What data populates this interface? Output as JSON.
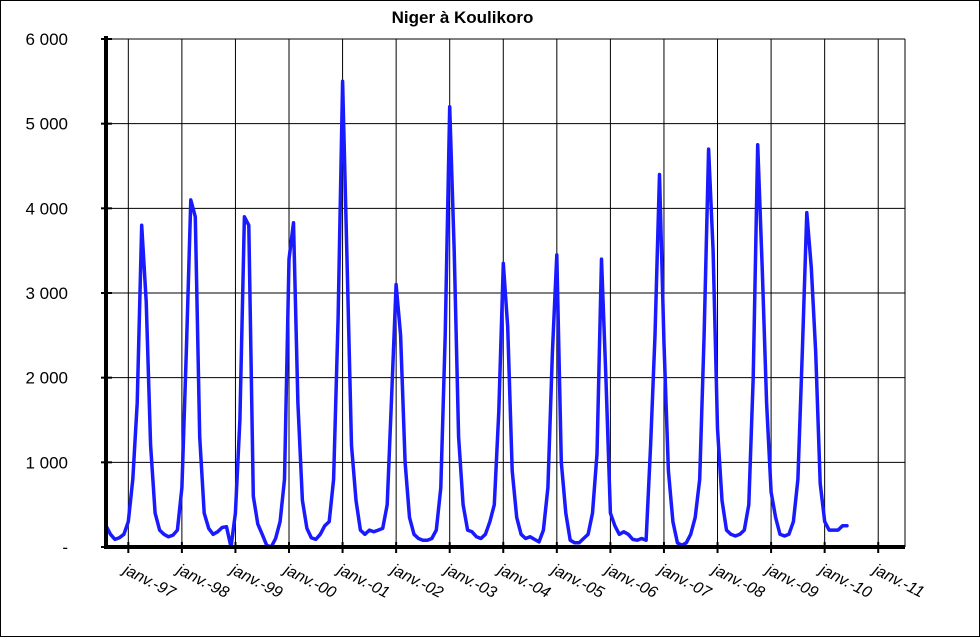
{
  "chart_data": {
    "type": "line",
    "title": "Niger à Koulikoro",
    "xlabel": "",
    "ylabel": "",
    "ylim": [
      0,
      6000
    ],
    "y_tick_labels": [
      "-",
      "1 000",
      "2 000",
      "3 000",
      "4 000",
      "5 000",
      "6 000"
    ],
    "x_tick_labels": [
      "janv.-97",
      "janv.-98",
      "janv.-99",
      "janv.-00",
      "janv.-01",
      "janv.-02",
      "janv.-03",
      "janv.-04",
      "janv.-05",
      "janv.-06",
      "janv.-07",
      "janv.-08",
      "janv.-09",
      "janv.-10",
      "janv.-11"
    ],
    "x_start": "1996-08",
    "x_step": "1 month",
    "grid": true,
    "line_color": "#1a1aff",
    "series": [
      {
        "values": [
          250,
          150,
          90,
          110,
          150,
          300,
          800,
          1700,
          3800,
          2900,
          1200,
          400,
          200,
          150,
          120,
          140,
          200,
          700,
          2300,
          4100,
          3900,
          1300,
          400,
          220,
          150,
          180,
          230,
          240,
          0,
          400,
          1500,
          3900,
          3800,
          600,
          270,
          150,
          20,
          0,
          100,
          300,
          800,
          3400,
          3830,
          1700,
          550,
          220,
          110,
          90,
          150,
          250,
          300,
          800,
          2700,
          5500,
          3400,
          1200,
          550,
          200,
          150,
          200,
          180,
          200,
          220,
          500,
          1800,
          3100,
          2500,
          1000,
          350,
          150,
          100,
          80,
          80,
          100,
          200,
          700,
          2500,
          5200,
          3500,
          1300,
          500,
          200,
          180,
          120,
          100,
          150,
          300,
          500,
          1600,
          3350,
          2600,
          900,
          350,
          150,
          100,
          120,
          90,
          60,
          200,
          700,
          2300,
          3450,
          1000,
          400,
          80,
          50,
          50,
          100,
          150,
          400,
          1100,
          3400,
          2000,
          400,
          250,
          150,
          180,
          150,
          90,
          80,
          100,
          80,
          1200,
          2500,
          4400,
          2400,
          900,
          300,
          50,
          20,
          50,
          150,
          350,
          800,
          2500,
          4700,
          3500,
          1400,
          550,
          200,
          150,
          130,
          150,
          200,
          500,
          2000,
          4750,
          3300,
          1700,
          650,
          350,
          150,
          130,
          150,
          300,
          800,
          2300,
          3950,
          3300,
          2300,
          750,
          300,
          200,
          200,
          200,
          250,
          250
        ]
      }
    ]
  }
}
